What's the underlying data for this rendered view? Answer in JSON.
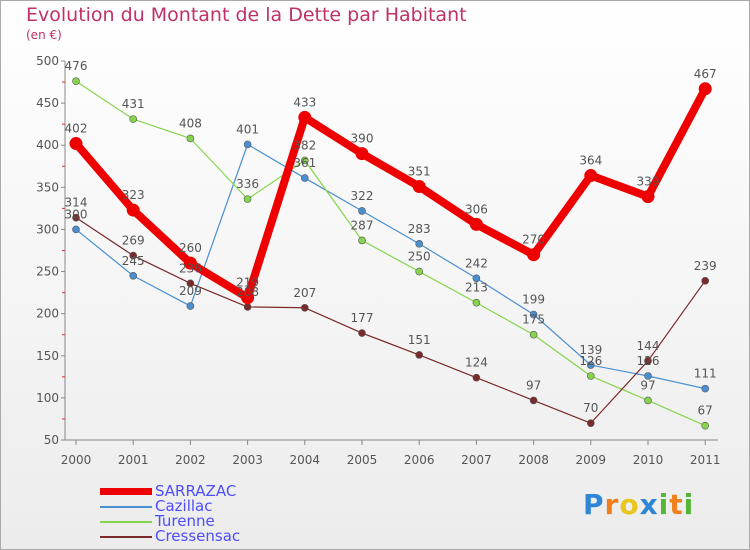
{
  "header": {
    "title": "Evolution du Montant de la Dette par Habitant",
    "unit": "(en €)"
  },
  "brand": {
    "letters": [
      {
        "ch": "P",
        "color": "#2f86d6"
      },
      {
        "ch": "r",
        "color": "#f07f1c"
      },
      {
        "ch": "o",
        "color": "#e9c61c"
      },
      {
        "ch": "x",
        "color": "#2f86d6"
      },
      {
        "ch": "i",
        "color": "#55b536"
      },
      {
        "ch": "t",
        "color": "#f07f1c"
      },
      {
        "ch": "i",
        "color": "#55b536"
      }
    ]
  },
  "chart_data": {
    "type": "line",
    "title": "Evolution du Montant de la Dette par Habitant",
    "ylabel": "(en €)",
    "x": [
      2000,
      2001,
      2002,
      2003,
      2004,
      2005,
      2006,
      2007,
      2008,
      2009,
      2010,
      2011
    ],
    "ylim": [
      50,
      500
    ],
    "yticks": [
      50,
      100,
      150,
      200,
      250,
      300,
      350,
      400,
      450,
      500
    ],
    "grid": false,
    "legend": "bottom-left",
    "series": [
      {
        "name": "SARRAZAC",
        "color": "#ee0000",
        "values": [
          402,
          323,
          260,
          219,
          433,
          390,
          351,
          306,
          270,
          364,
          339,
          467
        ]
      },
      {
        "name": "Cazillac",
        "color": "#4a8fd0",
        "values": [
          300,
          245,
          209,
          401,
          361,
          322,
          283,
          242,
          199,
          139,
          126,
          111
        ]
      },
      {
        "name": "Turenne",
        "color": "#86d44c",
        "values": [
          476,
          431,
          408,
          336,
          382,
          287,
          250,
          213,
          175,
          126,
          97,
          67
        ]
      },
      {
        "name": "Cressensac",
        "color": "#7a2a2a",
        "values": [
          314,
          269,
          236,
          208,
          207,
          177,
          151,
          124,
          97,
          70,
          144,
          239
        ]
      }
    ]
  }
}
